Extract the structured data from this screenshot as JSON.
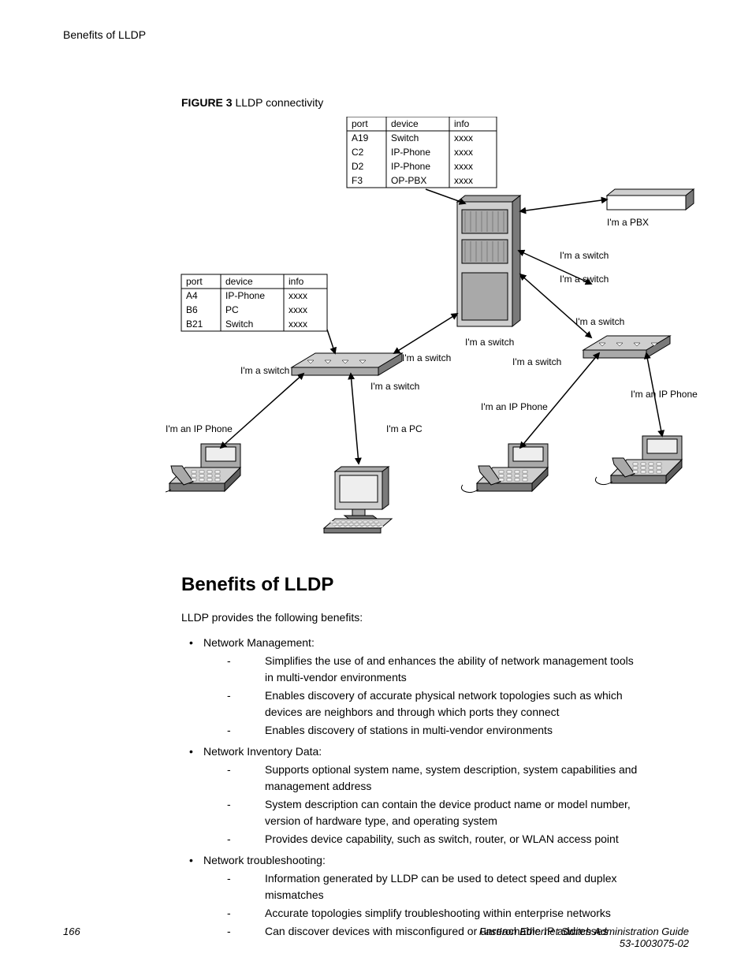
{
  "header": {
    "breadcrumb": "Benefits of LLDP"
  },
  "figure": {
    "label_bold": "FIGURE 3",
    "label_rest": " LLDP connectivity",
    "table_top": {
      "headers": [
        "port",
        "device",
        "info"
      ],
      "rows": [
        [
          "A19",
          "Switch",
          "xxxx"
        ],
        [
          "C2",
          "IP-Phone",
          "xxxx"
        ],
        [
          "D2",
          "IP-Phone",
          "xxxx"
        ],
        [
          "F3",
          "OP-PBX",
          "xxxx"
        ]
      ]
    },
    "table_left": {
      "headers": [
        "port",
        "device",
        "info"
      ],
      "rows": [
        [
          "A4",
          "IP-Phone",
          "xxxx"
        ],
        [
          "B6",
          "PC",
          "xxxx"
        ],
        [
          "B21",
          "Switch",
          "xxxx"
        ]
      ]
    },
    "labels": {
      "pbx": "I'm a PBX",
      "switch": "I'm a switch",
      "ipphone": "I'm an IP Phone",
      "pc": "I'm a PC"
    },
    "colors": {
      "stroke": "#000000",
      "device_light": "#cfcfcf",
      "device_mid": "#a9a9a9",
      "device_dark": "#7a7a7a",
      "device_shadow": "#5e5e5e",
      "screen": "#eeeeee"
    }
  },
  "section": {
    "title": "Benefits of LLDP",
    "intro": "LLDP provides the following benefits:",
    "items": [
      {
        "text": "Network Management:",
        "sub": [
          "Simplifies the use of and enhances the ability of network management tools in multi-vendor environments",
          "Enables discovery of accurate physical network topologies such as which devices are neighbors and through which ports they connect",
          "Enables discovery of stations in multi-vendor environments"
        ]
      },
      {
        "text": "Network Inventory Data:",
        "sub": [
          "Supports optional system name, system description, system capabilities and management address",
          "System description can contain the device product name or model number, version of hardware type, and operating system",
          "Provides device capability, such as switch, router, or WLAN access point"
        ]
      },
      {
        "text": "Network troubleshooting:",
        "sub": [
          "Information generated by LLDP can be used to detect speed and duplex mismatches",
          "Accurate topologies simplify troubleshooting within enterprise networks",
          "Can discover devices with misconfigured or unreachable IP addresses"
        ]
      }
    ]
  },
  "footer": {
    "page": "166",
    "doc_title": "FastIron Ethernet Switch Administration Guide",
    "doc_num": "53-1003075-02"
  }
}
